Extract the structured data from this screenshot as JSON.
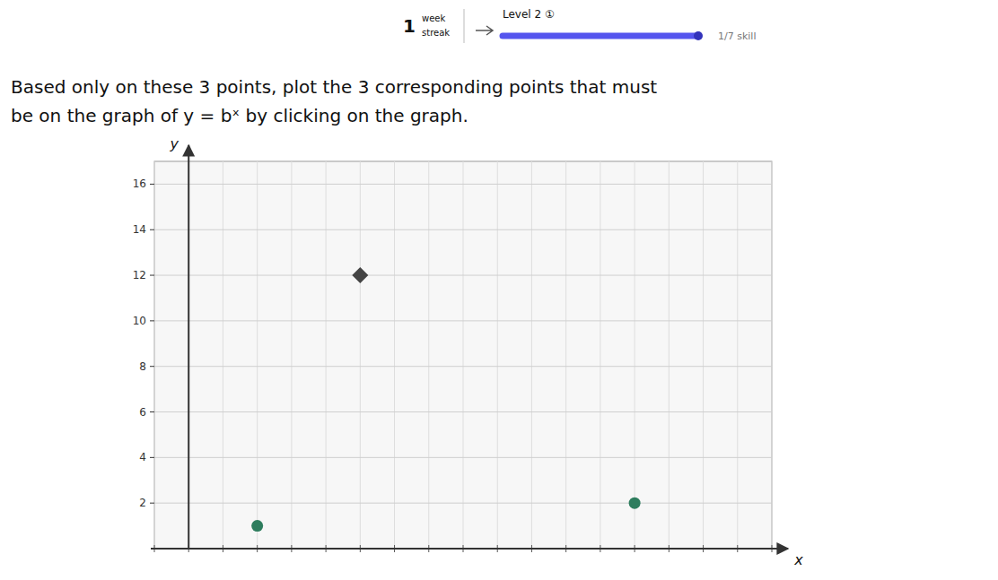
{
  "chart_data": {
    "type": "scatter",
    "title": "Based only on these 3 points, plot the 3 corresponding points that must",
    "subtitle": "be on the graph of y = bˣ by clicking on the graph.",
    "xlabel": "x",
    "ylabel": "y",
    "annotations": [
      "1",
      "week",
      "streak",
      "Level 2 ①",
      "1/7 skill"
    ],
    "xlim": [
      -1,
      17
    ],
    "ylim": [
      0,
      17
    ],
    "xticks": [
      -1,
      0,
      1,
      2,
      3,
      4,
      5,
      6,
      7,
      8,
      9,
      10,
      11,
      12,
      13,
      14,
      15,
      16,
      17
    ],
    "yticks": [
      2,
      4,
      6,
      8,
      10,
      12,
      14,
      16
    ],
    "grid": true,
    "tick_labels": "y",
    "series": [
      {
        "color": "#2e7d5e",
        "marker": "circle",
        "x": [
          2,
          13
        ],
        "values": [
          1,
          2
        ]
      },
      {
        "color": "#444444",
        "marker": "diamond",
        "x": [
          5
        ],
        "values": [
          12
        ]
      }
    ]
  }
}
